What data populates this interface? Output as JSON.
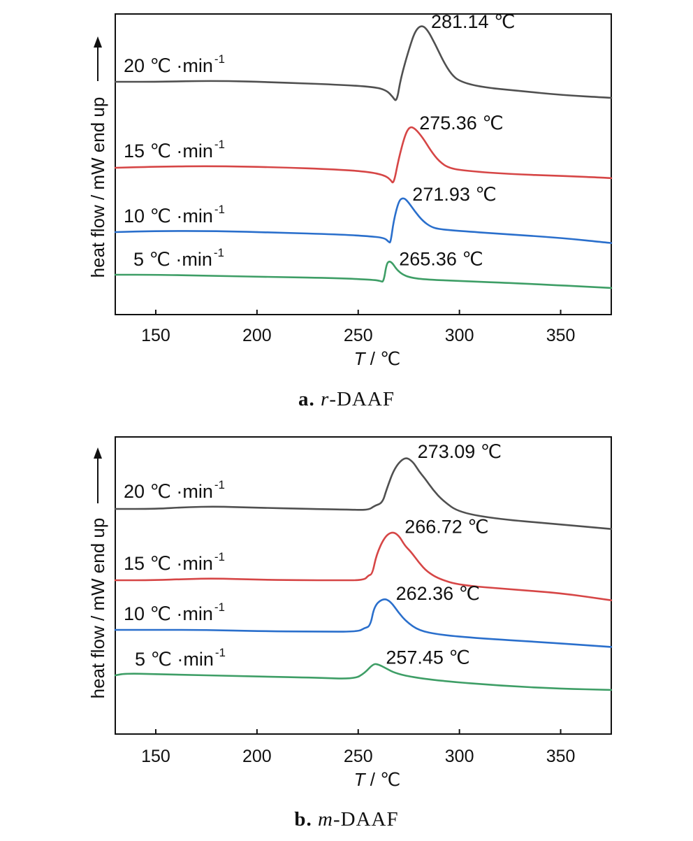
{
  "chart_data": [
    {
      "type": "line",
      "panel_letter": "a.",
      "panel_prefix": "r",
      "panel_name": "-DAAF",
      "xlabel_var": "T",
      "xlabel_unit": " / ℃",
      "ylabel": "heat flow / mW  end up",
      "xlim": [
        130,
        375
      ],
      "xticks": [
        150,
        200,
        250,
        300,
        350
      ],
      "series": [
        {
          "name": "20 ℃·min-1",
          "rate_label": "20 ℃ ·min",
          "exponent": "-1",
          "peak_label": "281.14 ℃",
          "color": "#505050",
          "points": [
            [
              130,
              0.0
            ],
            [
              150,
              0.0
            ],
            [
              180,
              0.2
            ],
            [
              210,
              -0.1
            ],
            [
              240,
              -0.5
            ],
            [
              258,
              -0.9
            ],
            [
              264,
              -1.5
            ],
            [
              267,
              -2.6
            ],
            [
              269,
              -3.6
            ],
            [
              271,
              0.6
            ],
            [
              275,
              5.6
            ],
            [
              278,
              8.8
            ],
            [
              281.14,
              9.9
            ],
            [
              284,
              9.2
            ],
            [
              288,
              6.6
            ],
            [
              292,
              3.6
            ],
            [
              296,
              1.3
            ],
            [
              300,
              0.1
            ],
            [
              310,
              -0.9
            ],
            [
              330,
              -1.6
            ],
            [
              350,
              -2.3
            ],
            [
              375,
              -2.8
            ]
          ]
        },
        {
          "name": "15 ℃·min-1",
          "rate_label": "15 ℃ ·min",
          "exponent": "-1",
          "peak_label": "275.36 ℃",
          "color": "#d64646",
          "points": [
            [
              130,
              0.0
            ],
            [
              150,
              0.2
            ],
            [
              180,
              0.3
            ],
            [
              210,
              0.1
            ],
            [
              240,
              -0.3
            ],
            [
              255,
              -0.7
            ],
            [
              263,
              -1.3
            ],
            [
              266,
              -2.1
            ],
            [
              267.5,
              -2.9
            ],
            [
              270,
              1.6
            ],
            [
              273,
              5.6
            ],
            [
              275.36,
              7.2
            ],
            [
              278,
              6.9
            ],
            [
              282,
              5.2
            ],
            [
              286,
              2.9
            ],
            [
              290,
              1.1
            ],
            [
              295,
              -0.1
            ],
            [
              305,
              -0.6
            ],
            [
              325,
              -1.1
            ],
            [
              350,
              -1.4
            ],
            [
              375,
              -1.8
            ]
          ]
        },
        {
          "name": "10 ℃·min-1",
          "rate_label": "10 ℃ ·min",
          "exponent": "-1",
          "peak_label": "271.93 ℃",
          "color": "#2a6fcc",
          "points": [
            [
              130,
              0.0
            ],
            [
              150,
              0.2
            ],
            [
              180,
              0.2
            ],
            [
              210,
              -0.1
            ],
            [
              240,
              -0.4
            ],
            [
              255,
              -0.7
            ],
            [
              263,
              -1.0
            ],
            [
              265,
              -1.7
            ],
            [
              266,
              -1.9
            ],
            [
              267.5,
              2.0
            ],
            [
              270,
              5.4
            ],
            [
              271.93,
              6.0
            ],
            [
              274,
              5.6
            ],
            [
              278,
              3.6
            ],
            [
              282,
              1.9
            ],
            [
              286,
              0.9
            ],
            [
              290,
              0.5
            ],
            [
              300,
              0.2
            ],
            [
              320,
              -0.3
            ],
            [
              350,
              -1.0
            ],
            [
              375,
              -1.9
            ]
          ]
        },
        {
          "name": "5 ℃·min-1",
          "rate_label": "5 ℃ ·min",
          "exponent": "-1",
          "peak_label": "265.36 ℃",
          "color": "#3e9e66",
          "points": [
            [
              130,
              0.0
            ],
            [
              150,
              0.0
            ],
            [
              180,
              -0.2
            ],
            [
              210,
              -0.4
            ],
            [
              240,
              -0.6
            ],
            [
              258,
              -0.9
            ],
            [
              261,
              -1.1
            ],
            [
              262.5,
              -1.3
            ],
            [
              264,
              1.9
            ],
            [
              265.36,
              2.4
            ],
            [
              267,
              2.0
            ],
            [
              269,
              0.9
            ],
            [
              272,
              0.0
            ],
            [
              276,
              -0.5
            ],
            [
              282,
              -0.8
            ],
            [
              300,
              -1.1
            ],
            [
              330,
              -1.5
            ],
            [
              375,
              -2.3
            ]
          ]
        }
      ]
    },
    {
      "type": "line",
      "panel_letter": "b.",
      "panel_prefix": "m",
      "panel_name": "-DAAF",
      "xlabel_var": "T",
      "xlabel_unit": " / ℃",
      "ylabel": "heat flow / mW  end up",
      "xlim": [
        130,
        375
      ],
      "xticks": [
        150,
        200,
        250,
        300,
        350
      ],
      "series": [
        {
          "name": "20 ℃·min-1",
          "rate_label": "20 ℃ ·min",
          "exponent": "-1",
          "peak_label": "273.09 ℃",
          "color": "#505050",
          "points": [
            [
              130,
              0.0
            ],
            [
              150,
              0.0
            ],
            [
              165,
              0.3
            ],
            [
              180,
              0.4
            ],
            [
              200,
              0.2
            ],
            [
              225,
              0.0
            ],
            [
              245,
              -0.1
            ],
            [
              255,
              -0.2
            ],
            [
              258,
              0.5
            ],
            [
              262,
              1.0
            ],
            [
              264,
              3.2
            ],
            [
              268,
              6.8
            ],
            [
              273.09,
              8.6
            ],
            [
              277,
              7.8
            ],
            [
              280,
              6.2
            ],
            [
              283,
              5.0
            ],
            [
              287,
              3.1
            ],
            [
              292,
              1.3
            ],
            [
              300,
              -0.6
            ],
            [
              320,
              -1.7
            ],
            [
              345,
              -2.4
            ],
            [
              375,
              -3.3
            ]
          ]
        },
        {
          "name": "15 ℃·min-1",
          "rate_label": "15 ℃ ·min",
          "exponent": "-1",
          "peak_label": "266.72 ℃",
          "color": "#d64646",
          "points": [
            [
              130,
              0.0
            ],
            [
              150,
              0.0
            ],
            [
              165,
              0.2
            ],
            [
              180,
              0.3
            ],
            [
              200,
              0.1
            ],
            [
              220,
              0.0
            ],
            [
              240,
              0.0
            ],
            [
              253,
              0.0
            ],
            [
              255,
              0.8
            ],
            [
              257,
              1.0
            ],
            [
              259,
              4.2
            ],
            [
              263,
              7.1
            ],
            [
              266.72,
              8.0
            ],
            [
              270,
              7.4
            ],
            [
              273,
              5.7
            ],
            [
              276,
              4.7
            ],
            [
              280,
              2.9
            ],
            [
              284,
              1.4
            ],
            [
              290,
              0.2
            ],
            [
              300,
              -0.8
            ],
            [
              325,
              -1.5
            ],
            [
              350,
              -2.1
            ],
            [
              375,
              -3.3
            ]
          ]
        },
        {
          "name": "10 ℃·min-1",
          "rate_label": "10 ℃ ·min",
          "exponent": "-1",
          "peak_label": "262.36 ℃",
          "color": "#2a6fcc",
          "points": [
            [
              130,
              0.0
            ],
            [
              150,
              0.0
            ],
            [
              175,
              0.0
            ],
            [
              200,
              -0.2
            ],
            [
              230,
              -0.3
            ],
            [
              250,
              -0.3
            ],
            [
              253,
              0.3
            ],
            [
              256,
              0.6
            ],
            [
              258,
              4.0
            ],
            [
              262.36,
              5.2
            ],
            [
              266,
              4.7
            ],
            [
              270,
              2.8
            ],
            [
              274,
              1.3
            ],
            [
              280,
              -0.1
            ],
            [
              290,
              -0.8
            ],
            [
              310,
              -1.4
            ],
            [
              340,
              -2.0
            ],
            [
              375,
              -2.8
            ]
          ]
        },
        {
          "name": "5 ℃·min-1",
          "rate_label": "5 ℃ ·min",
          "exponent": "-1",
          "peak_label": "257.45 ℃",
          "color": "#3e9e66",
          "points": [
            [
              130,
              0.0
            ],
            [
              135,
              0.3
            ],
            [
              150,
              0.2
            ],
            [
              200,
              -0.2
            ],
            [
              230,
              -0.4
            ],
            [
              248,
              -0.6
            ],
            [
              253,
              0.3
            ],
            [
              257.45,
              1.9
            ],
            [
              260,
              1.8
            ],
            [
              264,
              1.1
            ],
            [
              268,
              0.4
            ],
            [
              275,
              -0.2
            ],
            [
              290,
              -0.9
            ],
            [
              320,
              -1.7
            ],
            [
              350,
              -2.2
            ],
            [
              375,
              -2.4
            ]
          ]
        }
      ]
    }
  ]
}
